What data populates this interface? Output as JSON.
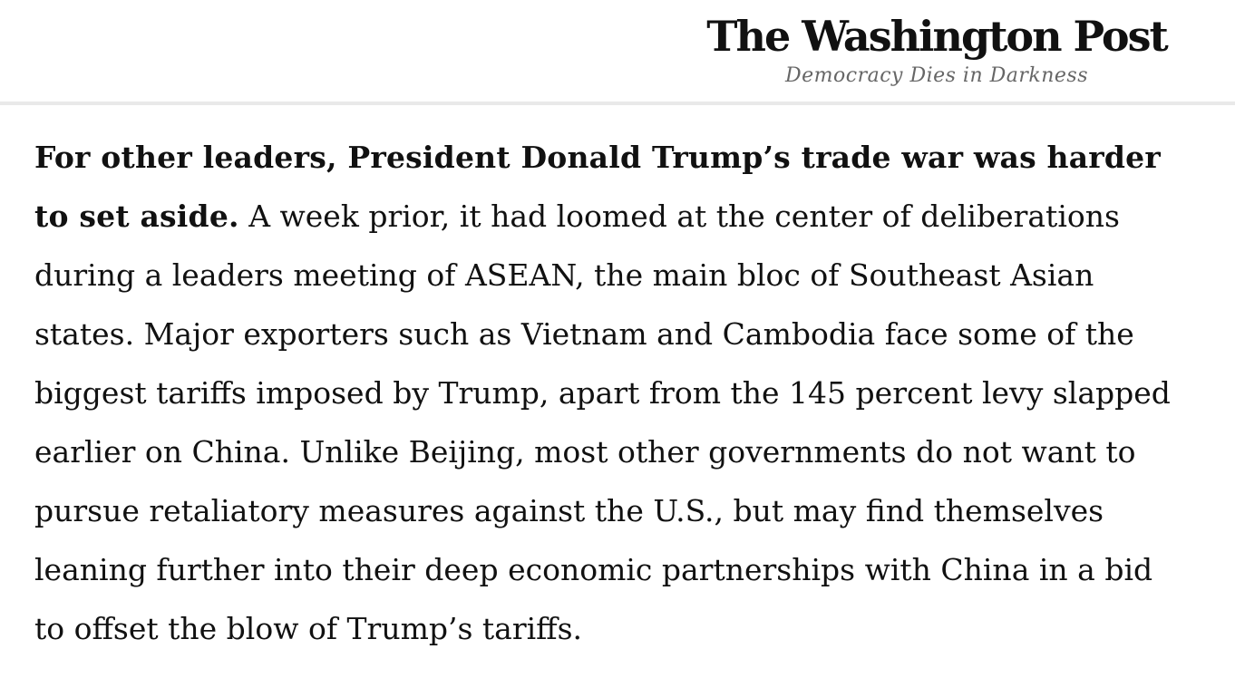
{
  "masthead": {
    "logo": "The Washington Post",
    "tagline": "Democracy Dies in Darkness"
  },
  "article": {
    "lead_bold": "For other leaders, President Donald Trump’s trade war was harder to set aside.",
    "body_text": " A week prior, it had loomed at the center of deliberations during a leaders meeting of ASEAN, the main bloc of Southeast Asian states. Major exporters such as Vietnam and Cambodia face some of the biggest tariffs imposed by Trump, apart from the 145 percent levy slapped earlier on China. Unlike Beijing, most other governments do not want to pursue retaliatory measures against the U.S., but may find themselves leaning further into their deep economic partnerships with China in a bid to offset the blow of Trump’s tariffs."
  },
  "colors": {
    "text": "#111111",
    "tagline": "#666666",
    "divider": "#e9e9e9",
    "background": "#ffffff"
  }
}
